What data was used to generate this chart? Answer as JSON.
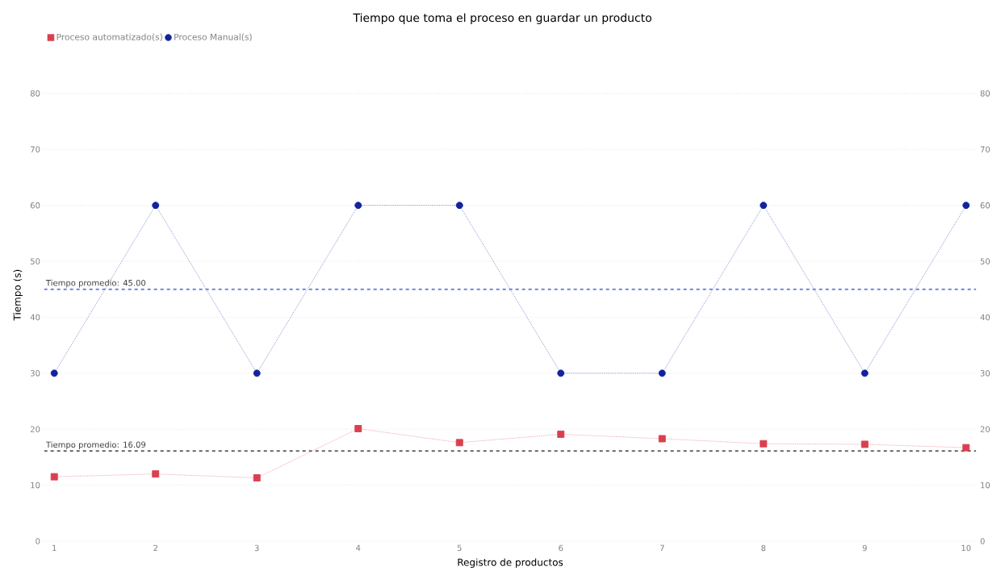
{
  "chart_data": {
    "type": "line",
    "title": "Tiempo que toma el proceso en guardar un producto",
    "xlabel": "Registro de productos",
    "ylabel": "Tiempo (s)",
    "categories": [
      "1",
      "2",
      "3",
      "4",
      "5",
      "6",
      "7",
      "8",
      "9",
      "10"
    ],
    "series": [
      {
        "name": "Proceso automatizado(s)",
        "color": "#d9404f",
        "marker": "square",
        "values": [
          11.5,
          12.0,
          11.3,
          20.1,
          17.6,
          19.1,
          18.3,
          17.4,
          17.3,
          16.7
        ]
      },
      {
        "name": "Proceso Manual(s)",
        "color": "#12239e",
        "marker": "circle",
        "values": [
          30,
          60,
          30,
          60,
          60,
          30,
          30,
          60,
          30,
          60
        ]
      }
    ],
    "ylim": [
      0,
      80
    ],
    "yticks": [
      0,
      10,
      20,
      30,
      40,
      50,
      60,
      70,
      80
    ],
    "y2lim": [
      0,
      80
    ],
    "y2ticks": [
      0,
      10,
      20,
      30,
      40,
      50,
      60,
      70,
      80
    ],
    "ref_lines": [
      {
        "axis": "y",
        "value": 45,
        "label": "Tiempo promedio: 45.00",
        "color": "#6f80d8",
        "line_style": "dashed"
      },
      {
        "axis": "y",
        "value": 16.09,
        "label": "Tiempo promedio: 16.09",
        "color": "#606060",
        "line_style": "dashed"
      }
    ],
    "line_style": "dotted",
    "grid": "y",
    "legend": "top left"
  }
}
